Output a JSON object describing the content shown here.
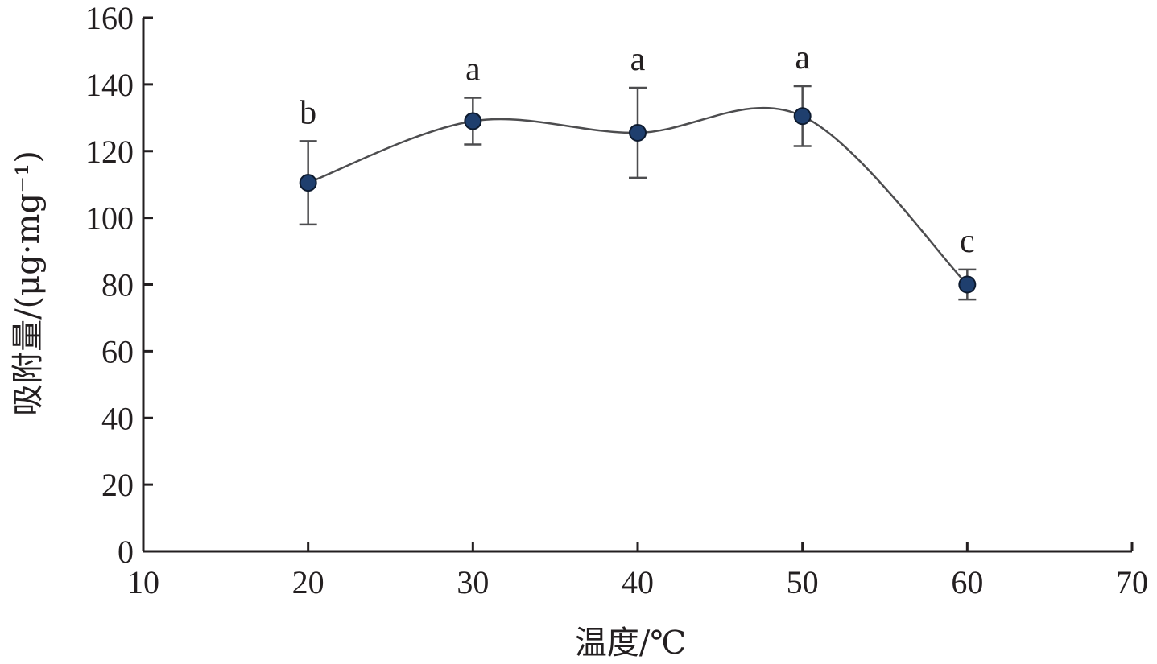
{
  "chart_data": {
    "type": "line",
    "xlabel": "温度/℃",
    "ylabel": "吸附量/(μg·mg⁻¹)",
    "xlim": [
      10,
      70
    ],
    "ylim": [
      0,
      160
    ],
    "x_ticks": [
      10,
      20,
      30,
      40,
      50,
      60,
      70
    ],
    "y_ticks": [
      0,
      20,
      40,
      60,
      80,
      100,
      120,
      140,
      160
    ],
    "grid": false,
    "legend": "none",
    "smooth_line": true,
    "marker_color": "#1f3f6e",
    "line_color": "#4d4d4f",
    "series": [
      {
        "x": [
          20,
          30,
          40,
          50,
          60
        ],
        "y": [
          110.5,
          129,
          125.5,
          130.5,
          80
        ],
        "error": [
          12.5,
          7,
          13.5,
          9,
          4.5
        ],
        "significance": [
          "b",
          "a",
          "a",
          "a",
          "c"
        ]
      }
    ]
  }
}
